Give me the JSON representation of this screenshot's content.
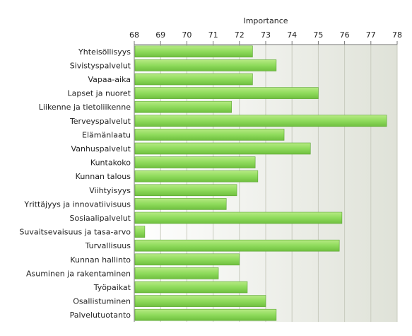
{
  "chart_data": {
    "type": "bar",
    "orientation": "horizontal",
    "title": "Importance",
    "xlim": [
      68,
      78
    ],
    "ticks": [
      "68",
      "69",
      "70",
      "71",
      "72",
      "73",
      "74",
      "75",
      "76",
      "77",
      "78"
    ],
    "grid": true,
    "categories": [
      "Yhteisöllisyys",
      "Sivistyspalvelut",
      "Vapaa-aika",
      "Lapset ja nuoret",
      "Liikenne ja tietoliikenne",
      "Terveyspalvelut",
      "Elämänlaatu",
      "Vanhuspalvelut",
      "Kuntakoko",
      "Kunnan talous",
      "Viihtyisyys",
      "Yrittäjyys ja innovatiivisuus",
      "Sosiaalipalvelut",
      "Suvaitsevaisuus ja tasa-arvo",
      "Turvallisuus",
      "Kunnan hallinto",
      "Asuminen ja rakentaminen",
      "Työpaikat",
      "Osallistuminen",
      "Palvelutuotanto"
    ],
    "values": [
      72.5,
      73.4,
      72.5,
      75.0,
      71.7,
      77.6,
      73.7,
      74.7,
      72.6,
      72.7,
      71.9,
      71.5,
      75.9,
      68.4,
      75.8,
      72.0,
      71.2,
      72.3,
      73.0,
      73.4
    ],
    "colors": {
      "bar_top": "#b6ea84",
      "bar_mid": "#8fdb5c",
      "bar_bottom": "#6fbf3f",
      "bar_edge": "#5aa531",
      "grid": "#c8cbbe",
      "axis": "#777777",
      "band_light": "#ffffff",
      "band_dark": "#dfe2d8"
    }
  }
}
